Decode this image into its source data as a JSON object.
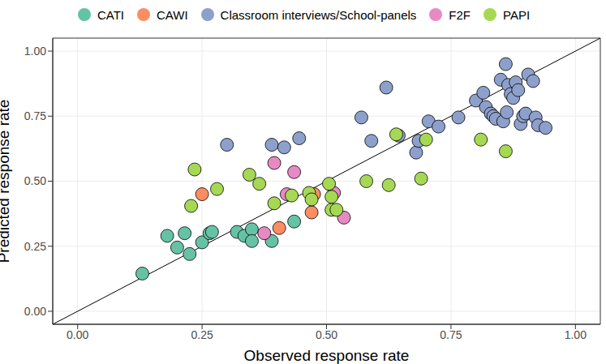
{
  "chart_data": {
    "type": "scatter",
    "xlabel": "Observed response rate",
    "ylabel": "Predicted response rate",
    "xlim": [
      -0.05,
      1.05
    ],
    "ylim": [
      -0.05,
      1.05
    ],
    "xticks": [
      {
        "value": 0,
        "label": "0.00"
      },
      {
        "value": 0.25,
        "label": "0.25"
      },
      {
        "value": 0.5,
        "label": "0.50"
      },
      {
        "value": 0.75,
        "label": "0.75"
      },
      {
        "value": 1,
        "label": "1.00"
      }
    ],
    "yticks": [
      {
        "value": 0,
        "label": "0.00"
      },
      {
        "value": 0.25,
        "label": "0.25"
      },
      {
        "value": 0.5,
        "label": "0.50"
      },
      {
        "value": 0.75,
        "label": "0.75"
      },
      {
        "value": 1,
        "label": "1.00"
      }
    ],
    "grid": true,
    "legend": "top",
    "marker": "circle",
    "series": [
      {
        "name": "CATI",
        "color": "#66C2A5",
        "x": [
          0.13,
          0.18,
          0.2,
          0.215,
          0.225,
          0.25,
          0.265,
          0.27,
          0.32,
          0.335,
          0.35,
          0.35,
          0.39,
          0.435
        ],
        "y": [
          0.145,
          0.29,
          0.245,
          0.3,
          0.22,
          0.265,
          0.3,
          0.305,
          0.305,
          0.29,
          0.315,
          0.27,
          0.27,
          0.345
        ]
      },
      {
        "name": "CAWI",
        "color": "#FC8D62",
        "x": [
          0.25,
          0.405,
          0.47,
          0.475
        ],
        "y": [
          0.45,
          0.32,
          0.38,
          0.45
        ]
      },
      {
        "name": "Classroom interviews/School-panels",
        "color": "#8DA0CB",
        "x": [
          0.3,
          0.39,
          0.415,
          0.445,
          0.57,
          0.59,
          0.62,
          0.645,
          0.68,
          0.685,
          0.705,
          0.725,
          0.765,
          0.8,
          0.815,
          0.82,
          0.83,
          0.835,
          0.84,
          0.85,
          0.855,
          0.86,
          0.865,
          0.87,
          0.875,
          0.88,
          0.885,
          0.89,
          0.895,
          0.9,
          0.905,
          0.915,
          0.92,
          0.925,
          0.94,
          0.862
        ],
        "y": [
          0.64,
          0.64,
          0.63,
          0.665,
          0.745,
          0.655,
          0.86,
          0.675,
          0.61,
          0.655,
          0.73,
          0.71,
          0.745,
          0.81,
          0.84,
          0.785,
          0.76,
          0.75,
          0.74,
          0.89,
          0.73,
          0.95,
          0.87,
          0.835,
          0.82,
          0.88,
          0.85,
          0.72,
          0.75,
          0.76,
          0.91,
          0.885,
          0.745,
          0.715,
          0.705,
          0.765
        ]
      },
      {
        "name": "F2F",
        "color": "#E78AC3",
        "x": [
          0.395,
          0.435,
          0.42,
          0.375,
          0.515,
          0.535
        ],
        "y": [
          0.57,
          0.535,
          0.45,
          0.3,
          0.455,
          0.36
        ]
      },
      {
        "name": "PAPI",
        "color": "#A6D854",
        "x": [
          0.235,
          0.228,
          0.28,
          0.345,
          0.365,
          0.395,
          0.43,
          0.465,
          0.47,
          0.505,
          0.51,
          0.51,
          0.52,
          0.58,
          0.625,
          0.64,
          0.69,
          0.7,
          0.81,
          0.86
        ],
        "y": [
          0.545,
          0.405,
          0.47,
          0.525,
          0.49,
          0.415,
          0.445,
          0.455,
          0.43,
          0.49,
          0.44,
          0.39,
          0.39,
          0.5,
          0.485,
          0.68,
          0.51,
          0.66,
          0.66,
          0.615
        ]
      }
    ]
  }
}
